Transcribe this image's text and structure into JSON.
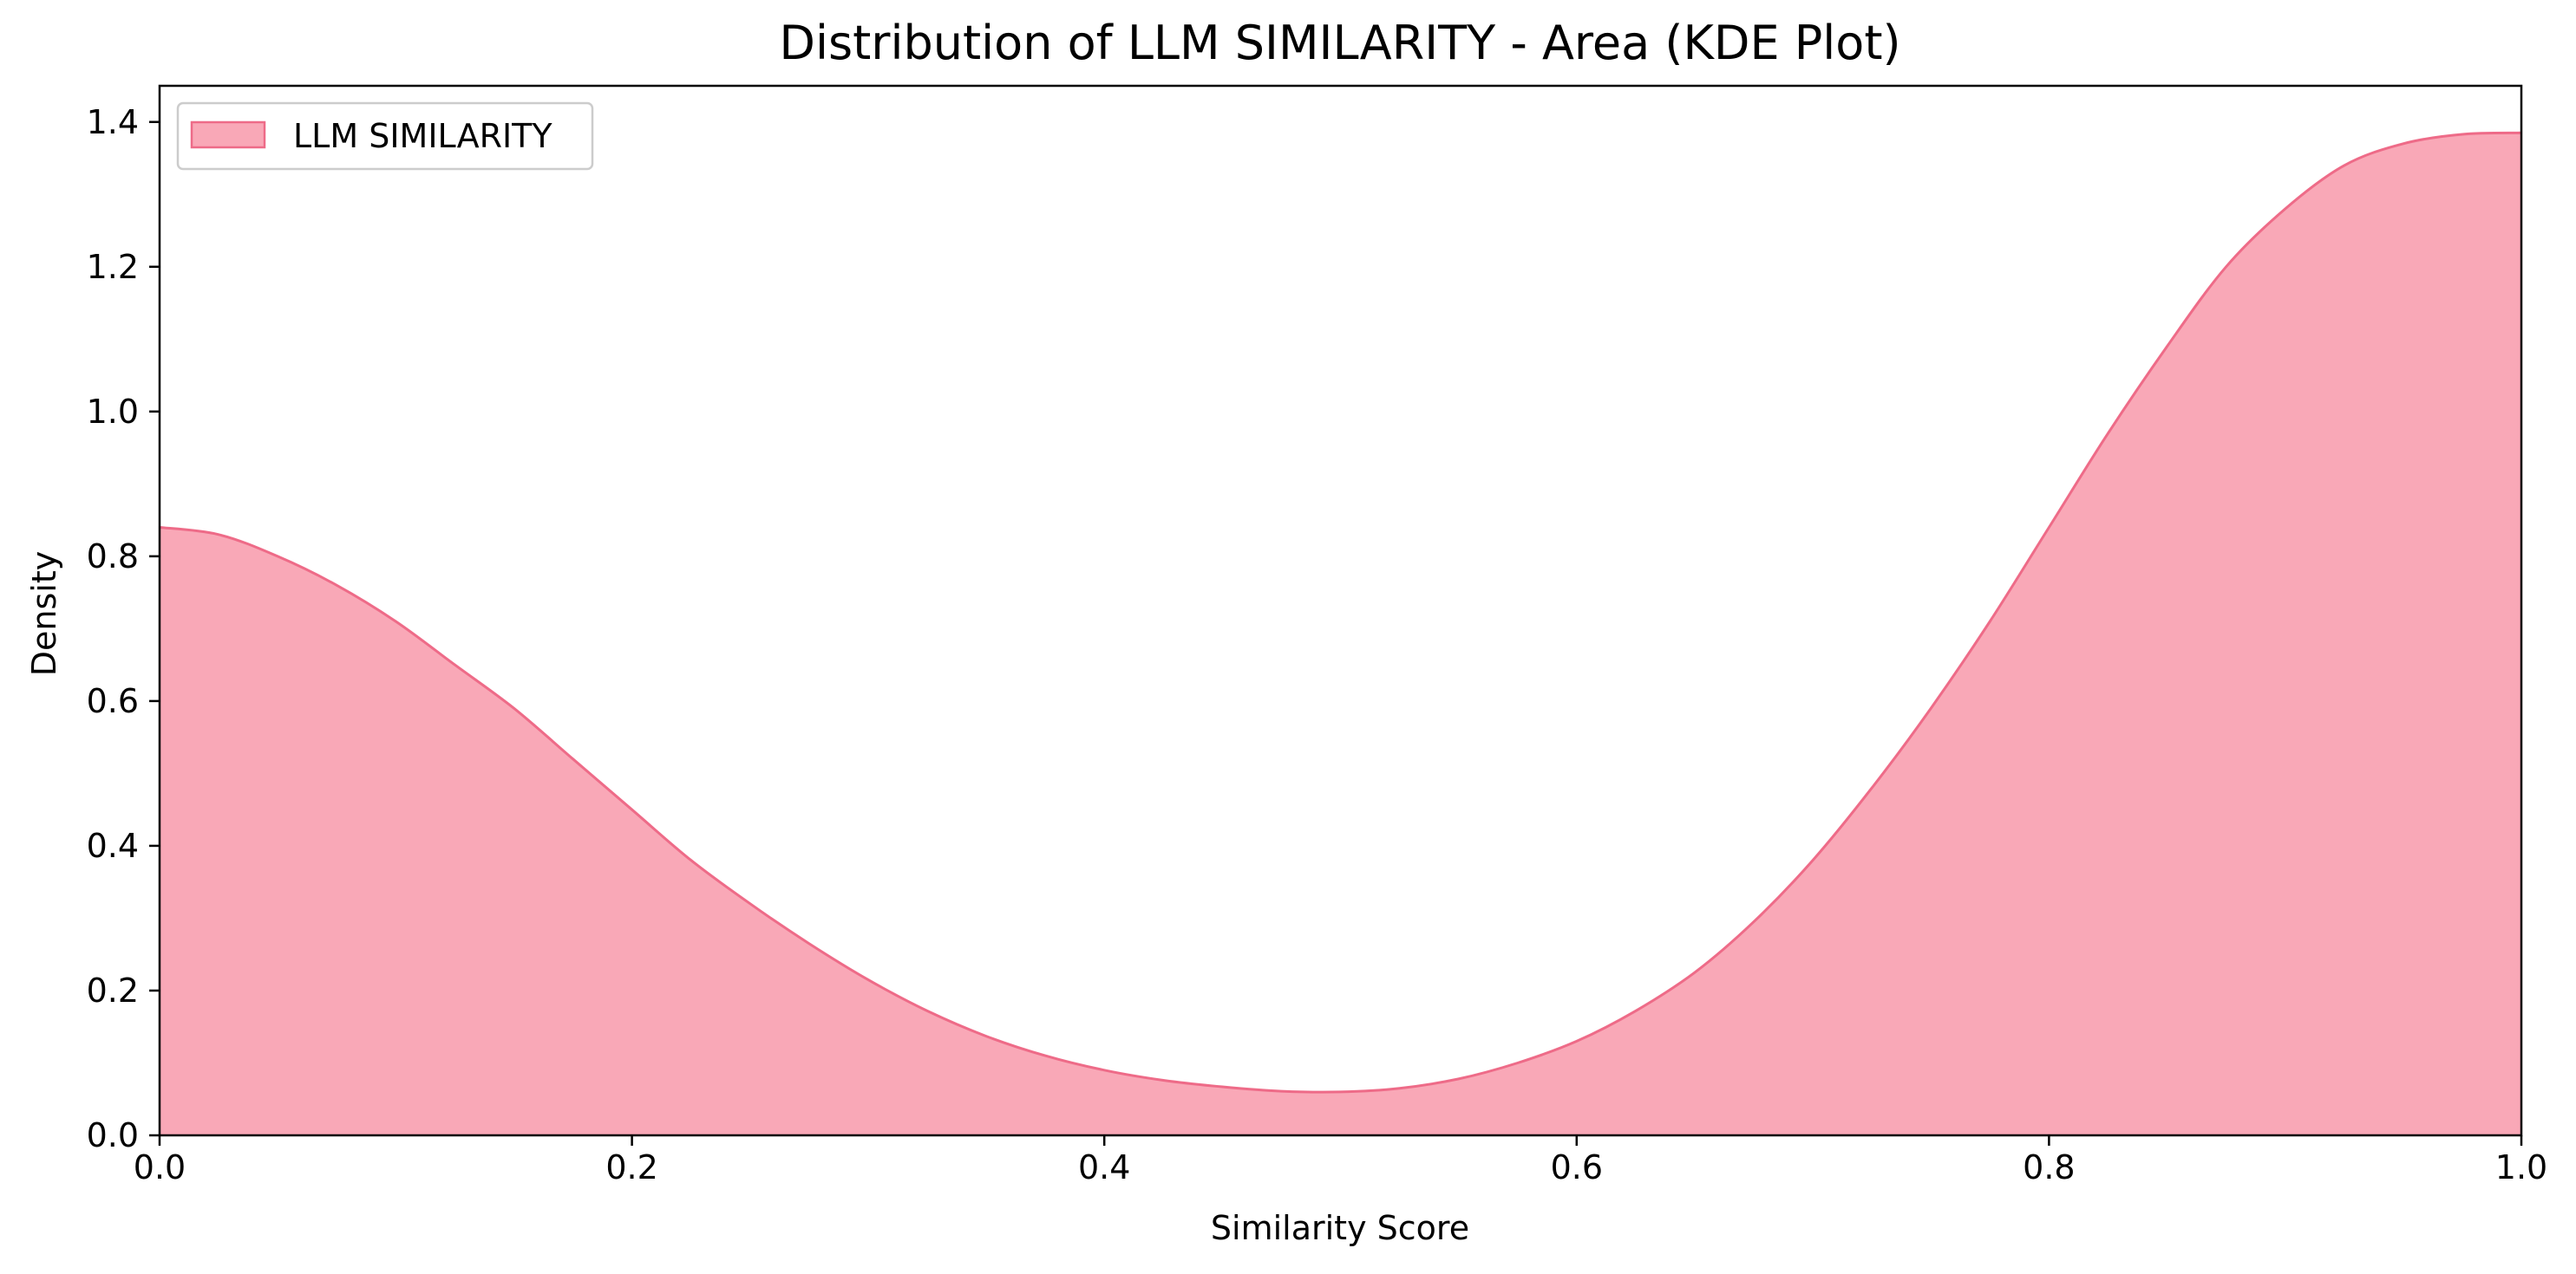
{
  "chart_data": {
    "type": "area",
    "title": "Distribution of LLM SIMILARITY - Area (KDE Plot)",
    "xlabel": "Similarity Score",
    "ylabel": "Density",
    "xlim": [
      0.0,
      1.0
    ],
    "ylim": [
      0.0,
      1.45
    ],
    "x_ticks": [
      "0.0",
      "0.2",
      "0.4",
      "0.6",
      "0.8",
      "1.0"
    ],
    "y_ticks": [
      "0.0",
      "0.2",
      "0.4",
      "0.6",
      "0.8",
      "1.0",
      "1.2",
      "1.4"
    ],
    "grid": false,
    "legend": "top-left",
    "series": [
      {
        "name": "LLM SIMILARITY",
        "fill_color": "#f9a8b7",
        "line_color": "#ee6b88",
        "x": [
          0.0,
          0.025,
          0.05,
          0.075,
          0.1,
          0.125,
          0.15,
          0.175,
          0.2,
          0.225,
          0.25,
          0.275,
          0.3,
          0.325,
          0.35,
          0.375,
          0.4,
          0.425,
          0.45,
          0.475,
          0.5,
          0.525,
          0.55,
          0.575,
          0.6,
          0.625,
          0.65,
          0.675,
          0.7,
          0.725,
          0.75,
          0.775,
          0.8,
          0.825,
          0.85,
          0.875,
          0.9,
          0.925,
          0.95,
          0.975,
          1.0
        ],
        "y": [
          0.84,
          0.83,
          0.8,
          0.76,
          0.71,
          0.65,
          0.59,
          0.52,
          0.45,
          0.38,
          0.32,
          0.265,
          0.215,
          0.172,
          0.137,
          0.11,
          0.09,
          0.076,
          0.067,
          0.061,
          0.06,
          0.065,
          0.078,
          0.1,
          0.13,
          0.172,
          0.225,
          0.295,
          0.38,
          0.48,
          0.59,
          0.71,
          0.84,
          0.97,
          1.09,
          1.2,
          1.28,
          1.34,
          1.37,
          1.383,
          1.385
        ]
      }
    ]
  }
}
